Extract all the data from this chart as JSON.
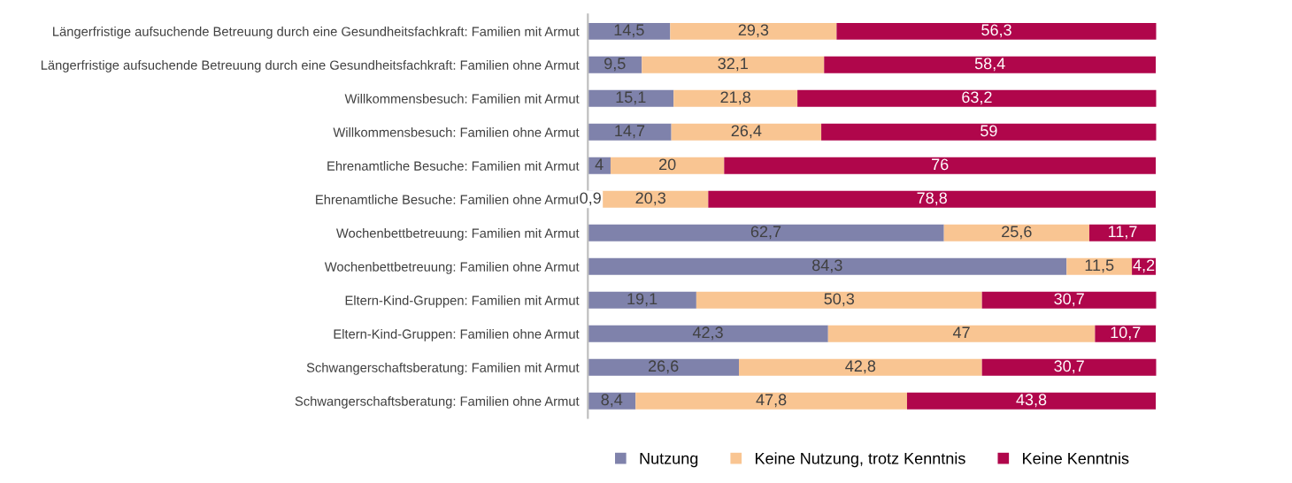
{
  "chart_data": {
    "type": "bar",
    "orientation": "horizontal",
    "stacked": true,
    "legend": "bottom",
    "grid": false,
    "categories": [
      "Längerfristige aufsuchende Betreuung durch eine Gesundheitsfachkraft: Familien mit Armut",
      "Längerfristige aufsuchende Betreuung durch eine Gesundheitsfachkraft: Familien ohne Armut",
      "Willkommensbesuch: Familien mit Armut",
      "Willkommensbesuch: Familien ohne Armut",
      "Ehrenamtliche Besuche: Familien mit Armut",
      "Ehrenamtliche Besuche: Familien ohne Armut",
      "Wochenbettbetreuung: Familien mit Armut",
      "Wochenbettbetreuung: Familien ohne Armut",
      "Eltern-Kind-Gruppen: Familien mit Armut",
      "Eltern-Kind-Gruppen: Familien ohne Armut",
      "Schwangerschaftsberatung: Familien mit Armut",
      "Schwangerschaftsberatung: Familien ohne Armut"
    ],
    "series": [
      {
        "name": "Nutzung",
        "color": "#7f82ab",
        "values": [
          14.5,
          9.5,
          15.1,
          14.7,
          4,
          0.9,
          62.7,
          84.3,
          19.1,
          42.3,
          26.6,
          8.4
        ],
        "value_labels": [
          "14,5",
          "9,5",
          "15,1",
          "14,7",
          "4",
          "0,9",
          "62,7",
          "84,3",
          "19,1",
          "42,3",
          "26,6",
          "8,4"
        ]
      },
      {
        "name": "Keine Nutzung, trotz Kenntnis",
        "color": "#f9c592",
        "values": [
          29.3,
          32.1,
          21.8,
          26.4,
          20,
          20.3,
          25.6,
          11.5,
          50.3,
          47,
          42.8,
          47.8
        ],
        "value_labels": [
          "29,3",
          "32,1",
          "21,8",
          "26,4",
          "20",
          "20,3",
          "25,6",
          "11,5",
          "50,3",
          "47",
          "42,8",
          "47,8"
        ]
      },
      {
        "name": "Keine Kenntnis",
        "color": "#b0064b",
        "values": [
          56.3,
          58.4,
          63.2,
          59,
          76,
          78.8,
          11.7,
          4.2,
          30.7,
          10.7,
          30.7,
          43.8
        ],
        "value_labels": [
          "56,3",
          "58,4",
          "63,2",
          "59",
          "76",
          "78,8",
          "11,7",
          "4,2",
          "30,7",
          "10,7",
          "30,7",
          "43,8"
        ]
      }
    ]
  }
}
